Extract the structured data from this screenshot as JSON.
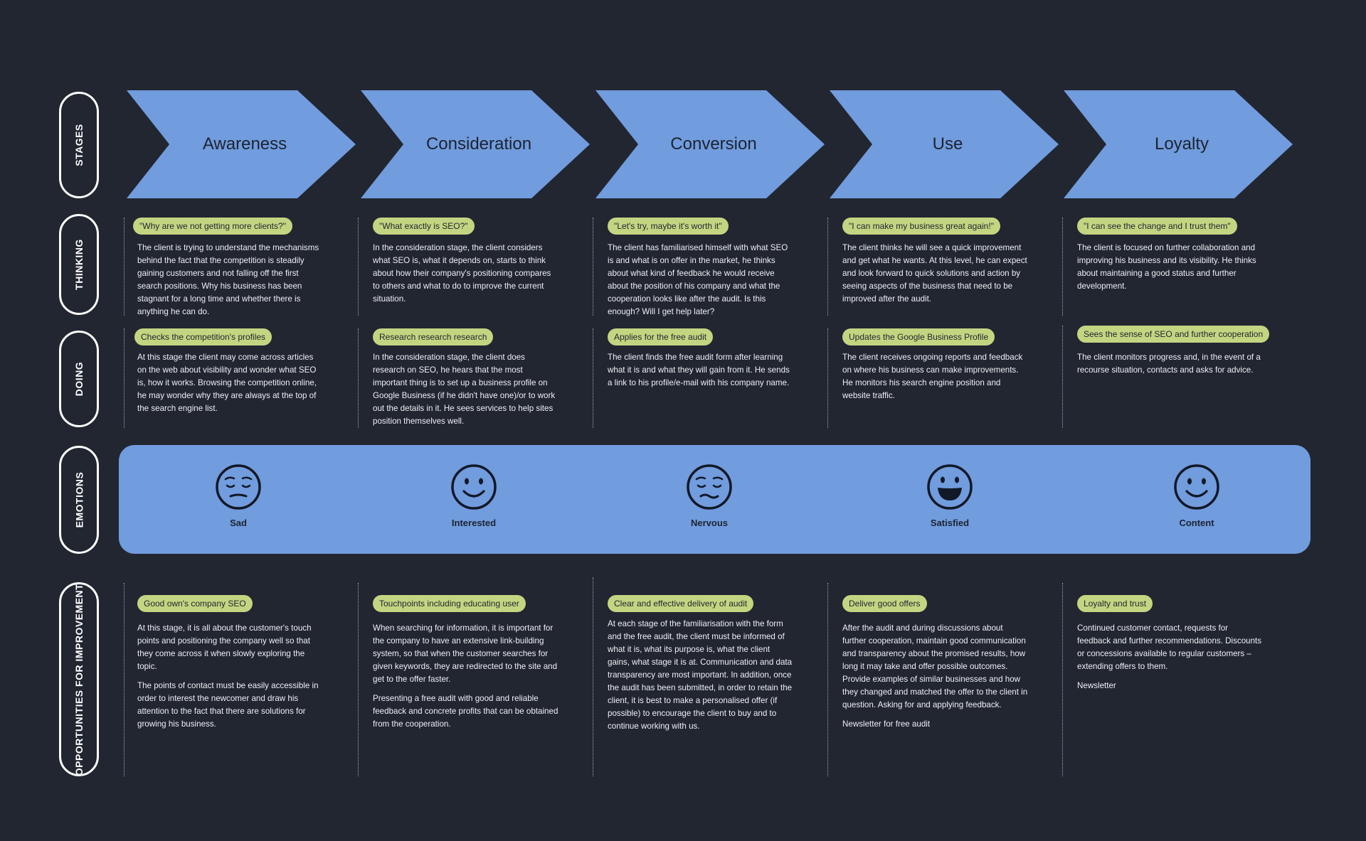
{
  "row_labels": {
    "stages": "STAGES",
    "thinking": "THINKING",
    "doing": "DOING",
    "emotions": "EMOTIONS",
    "opportunities": "OPPORTUNITIES FOR IMPROVEMENT"
  },
  "stages": [
    {
      "label": "Awareness"
    },
    {
      "label": "Consideration"
    },
    {
      "label": "Conversion"
    },
    {
      "label": "Use"
    },
    {
      "label": "Loyalty"
    }
  ],
  "thinking": [
    {
      "quote": "\"Why are we not getting more clients?\"",
      "text": "The client is trying to understand the mechanisms behind the fact that the competition is steadily gaining customers and not falling off the first search positions. Why his business has been stagnant for a long time and whether there is anything he can do."
    },
    {
      "quote": "\"What exactly is SEO?\"",
      "text": "In the consideration stage, the client considers what SEO is, what it depends on, starts to think about how their company's positioning compares to others and what to do to improve the current situation."
    },
    {
      "quote": "\"Let's try, maybe it's worth it\"",
      "text": "The client has familiarised himself with what SEO is and what is on offer in the market, he thinks about what kind of feedback he would receive about the position of his company and what the cooperation looks like after the audit. Is this enough? Will I get help later?"
    },
    {
      "quote": "\"I can make my business great again!\"",
      "text": "The client thinks he will see a quick improvement and get what he wants. At this level, he can expect and look forward to quick solutions and action by seeing aspects of the business that need to be improved after the audit."
    },
    {
      "quote": "\"I can see the change and I trust them\"",
      "text": "The client is focused on further collaboration and improving his business and its visibility. He thinks about maintaining a good status and further development."
    }
  ],
  "doing": [
    {
      "tag": "Checks the competition's profiles",
      "text": "At this stage the client may come across articles on the web about visibility and wonder what SEO is, how it works. Browsing the competition online, he may wonder why they are always at the top of the search engine list."
    },
    {
      "tag": "Research research research",
      "text": "In the consideration stage, the client does research on SEO, he hears that the most important thing is to set up a business profile on Google Business (if he didn't have one)/or to work out the details in it. He sees services to help sites position themselves well."
    },
    {
      "tag": "Applies for the free audit",
      "text": "The client finds the free audit form after learning what it is and what they will gain from it. He sends a link to his profile/e-mail with his company name."
    },
    {
      "tag": "Updates the Google Business Profile",
      "text": "The client receives ongoing reports and feedback on where his business can make improvements. He monitors his search engine position and website traffic."
    },
    {
      "tag": "Sees the sense of  SEO and further cooperation",
      "text": "The client monitors progress and, in the event of a recourse situation, contacts and asks for advice."
    }
  ],
  "emotions": [
    {
      "label": "Sad",
      "icon": "sad-face-icon"
    },
    {
      "label": "Interested",
      "icon": "smile-face-icon"
    },
    {
      "label": "Nervous",
      "icon": "nervous-face-icon"
    },
    {
      "label": "Satisfied",
      "icon": "grin-face-icon"
    },
    {
      "label": "Content",
      "icon": "smile-face-icon"
    }
  ],
  "opportunities": [
    {
      "tag": "Good own's company SEO",
      "paragraphs": [
        "At this stage, it is all about the customer's touch points and positioning the company well so that they come across it when slowly exploring the topic.",
        "The points of contact must be easily accessible in order to interest the newcomer and draw his attention to the fact that there are solutions for growing his business."
      ]
    },
    {
      "tag": "Touchpoints including educating user",
      "paragraphs": [
        "When searching for information, it is important for the company to have an extensive link-building system, so that when the customer searches for given keywords, they are redirected to the site and get to the offer faster.",
        "Presenting a free audit with good and reliable feedback and concrete profits that can be obtained from the cooperation."
      ]
    },
    {
      "tag": "Clear and effective delivery of audit",
      "paragraphs": [
        "At each stage of the familiarisation with the form and the free audit, the client must be informed of what it is, what its purpose is, what the client gains, what stage it is at. Communication and data transparency are most important. In addition, once the audit has been submitted, in order to retain the client, it is best to make a personalised offer (if possible) to encourage the client to buy and to continue working with us."
      ]
    },
    {
      "tag": "Deliver good offers",
      "paragraphs": [
        "After the audit and during discussions about further cooperation, maintain good communication and transparency about the promised results, how long it may take and offer possible outcomes. Provide examples of similar businesses and how they changed and matched the offer to the client in question. Asking for and applying feedback.",
        "Newsletter for free audit"
      ]
    },
    {
      "tag": "Loyalty and trust",
      "paragraphs": [
        "Continued customer contact, requests for feedback and further recommendations. Discounts or concessions available to regular customers – extending offers to them.",
        "Newsletter"
      ]
    }
  ],
  "colors": {
    "background": "#222631",
    "stage_fill": "#719cdd",
    "pill": "#c4d581",
    "label_border": "#ffffff"
  }
}
